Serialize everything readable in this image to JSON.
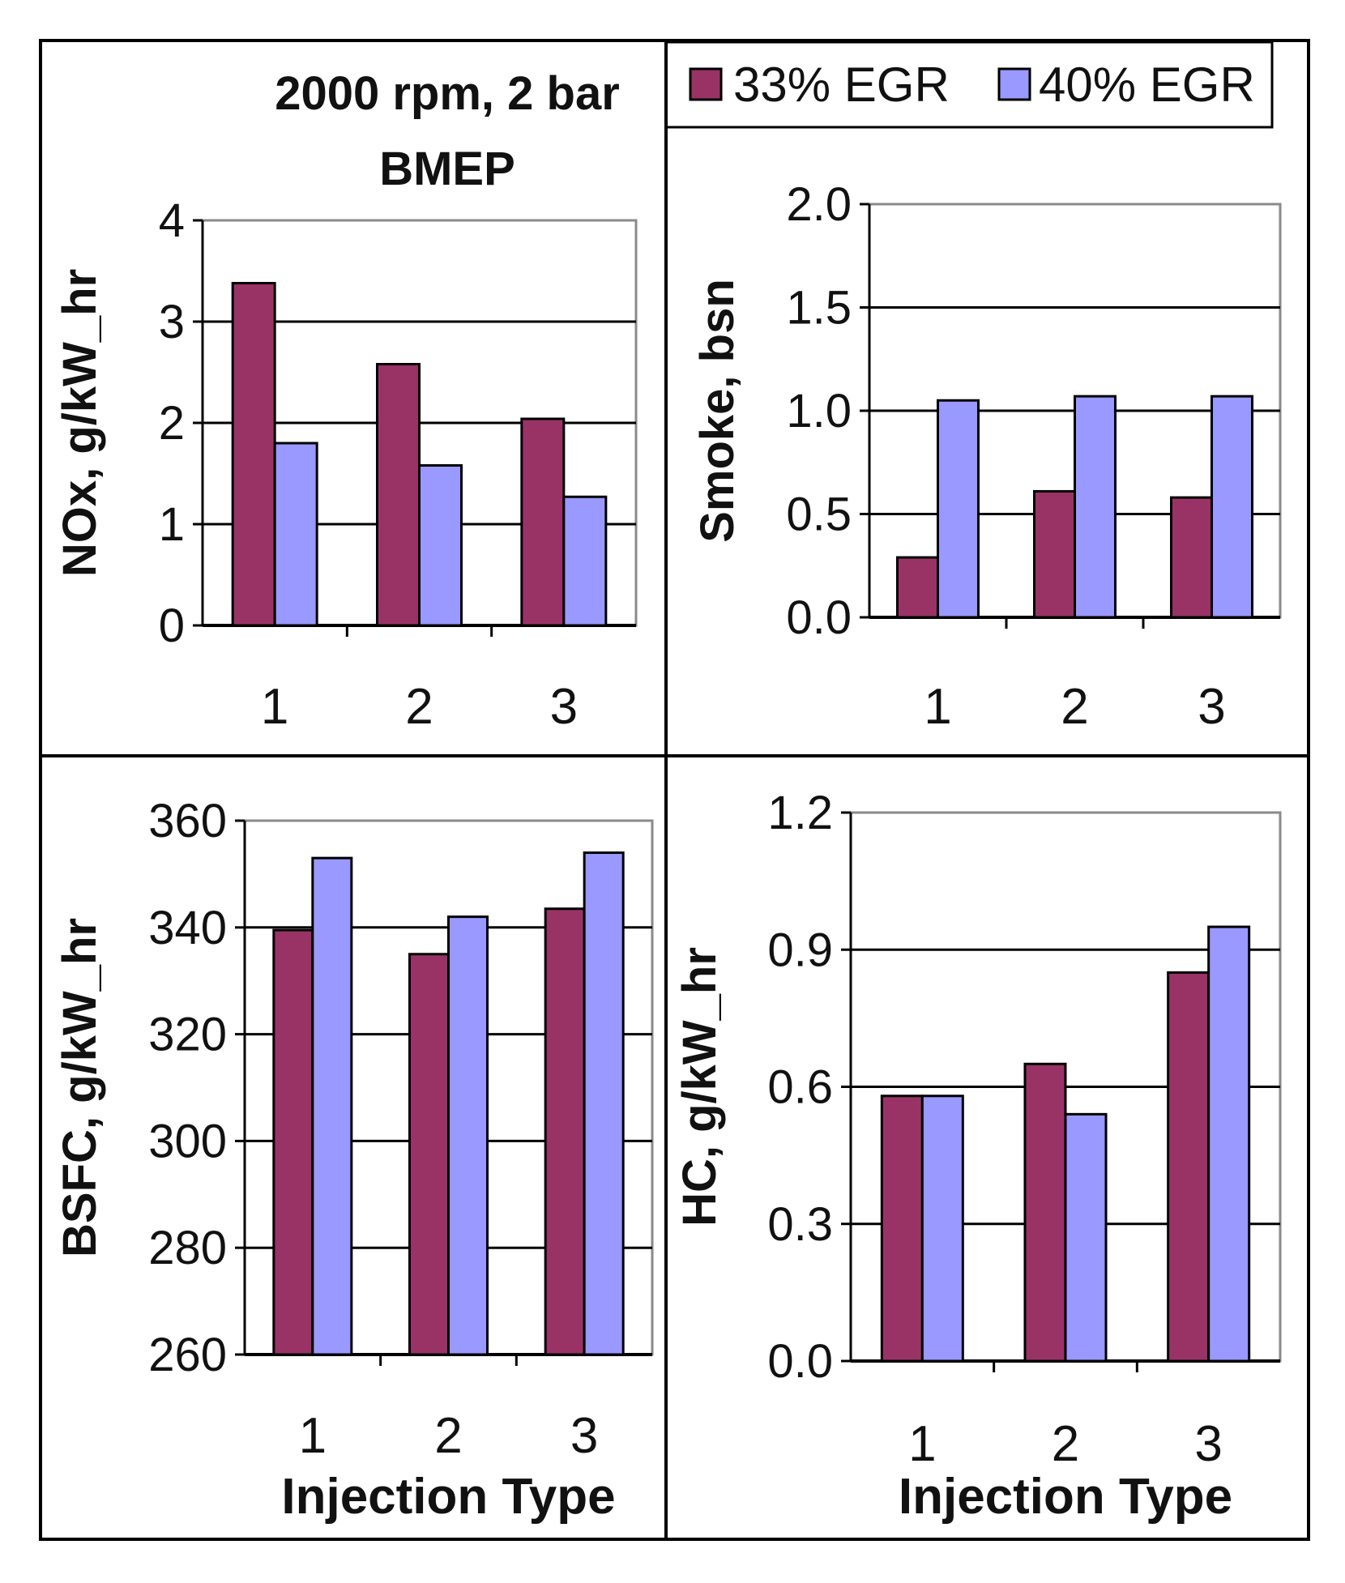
{
  "figure": {
    "title_line1": "2000 rpm, 2 bar",
    "title_line2": "BMEP",
    "legend": [
      {
        "label": "33% EGR",
        "color": "#993366"
      },
      {
        "label": "40% EGR",
        "color": "#9999ff"
      }
    ]
  },
  "chart_data": [
    {
      "type": "bar",
      "categories": [
        "1",
        "2",
        "3"
      ],
      "series": [
        {
          "name": "33% EGR",
          "values": [
            3.38,
            2.58,
            2.04
          ]
        },
        {
          "name": "40% EGR",
          "values": [
            1.8,
            1.58,
            1.27
          ]
        }
      ],
      "ylabel": "NOx, g/kW_hr",
      "xlabel": "",
      "ylim": [
        0,
        4
      ],
      "yticks": [
        "0",
        "1",
        "2",
        "3",
        "4"
      ],
      "grid": true
    },
    {
      "type": "bar",
      "categories": [
        "1",
        "2",
        "3"
      ],
      "series": [
        {
          "name": "33% EGR",
          "values": [
            0.29,
            0.61,
            0.58
          ]
        },
        {
          "name": "40% EGR",
          "values": [
            1.05,
            1.07,
            1.07
          ]
        }
      ],
      "ylabel": "Smoke, bsn",
      "xlabel": "",
      "ylim": [
        0,
        2
      ],
      "yticks": [
        "0.0",
        "0.5",
        "1.0",
        "1.5",
        "2.0"
      ],
      "grid": true
    },
    {
      "type": "bar",
      "categories": [
        "1",
        "2",
        "3"
      ],
      "series": [
        {
          "name": "33% EGR",
          "values": [
            339.5,
            335,
            343.5
          ]
        },
        {
          "name": "40% EGR",
          "values": [
            353,
            342,
            354
          ]
        }
      ],
      "ylabel": "BSFC, g/kW_hr",
      "xlabel": "Injection Type",
      "ylim": [
        260,
        360
      ],
      "yticks": [
        "260",
        "280",
        "300",
        "320",
        "340",
        "360"
      ],
      "grid": true
    },
    {
      "type": "bar",
      "categories": [
        "1",
        "2",
        "3"
      ],
      "series": [
        {
          "name": "33% EGR",
          "values": [
            0.58,
            0.65,
            0.85
          ]
        },
        {
          "name": "40% EGR",
          "values": [
            0.58,
            0.54,
            0.95
          ]
        }
      ],
      "ylabel": "HC, g/kW_hr",
      "xlabel": "Injection Type",
      "ylim": [
        0,
        1.2
      ],
      "yticks": [
        "0.0",
        "0.3",
        "0.6",
        "0.9",
        "1.2"
      ],
      "grid": true
    }
  ]
}
